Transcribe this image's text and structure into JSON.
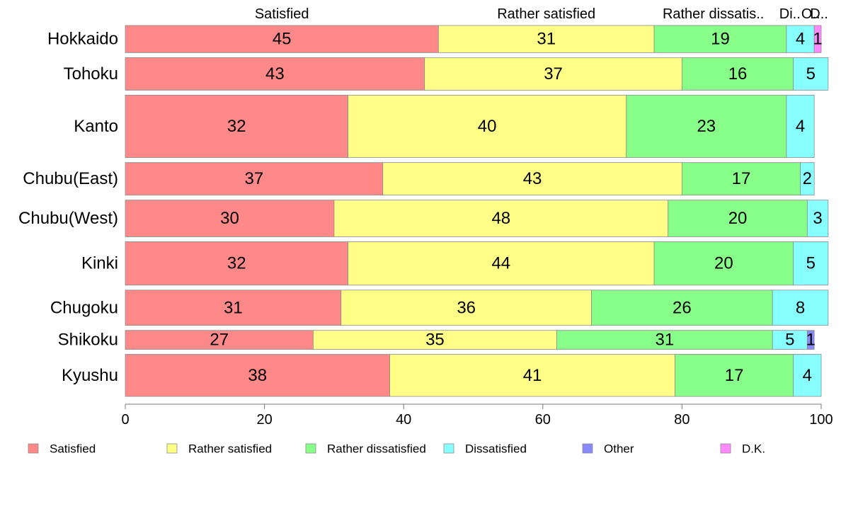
{
  "chart_data": {
    "type": "bar",
    "orientation": "horizontal",
    "stacked": true,
    "mosaic_row_heights": true,
    "categories": [
      "Hokkaido",
      "Tohoku",
      "Kanto",
      "Chubu(East)",
      "Chubu(West)",
      "Kinki",
      "Chugoku",
      "Shikoku",
      "Kyushu"
    ],
    "series": [
      {
        "name": "Satisfied",
        "color": "#ff8888",
        "values": [
          45,
          43,
          32,
          37,
          30,
          32,
          31,
          27,
          38
        ]
      },
      {
        "name": "Rather satisfied",
        "color": "#ffff88",
        "values": [
          31,
          37,
          40,
          43,
          48,
          44,
          36,
          35,
          41
        ]
      },
      {
        "name": "Rather dissatisfied",
        "color": "#88ff88",
        "values": [
          19,
          16,
          23,
          17,
          20,
          20,
          26,
          31,
          17
        ]
      },
      {
        "name": "Dissatisfied",
        "color": "#88ffff",
        "values": [
          4,
          5,
          4,
          2,
          3,
          5,
          8,
          5,
          4
        ]
      },
      {
        "name": "Other",
        "color": "#8888ff",
        "values": [
          0,
          0,
          0,
          0,
          0,
          0,
          0,
          1,
          0
        ]
      },
      {
        "name": "D.K.",
        "color": "#ff88ff",
        "values": [
          1,
          0,
          0,
          0,
          0,
          0,
          0,
          0,
          0
        ]
      }
    ],
    "row_weights": [
      1.0,
      1.2,
      2.3,
      1.2,
      1.35,
      1.6,
      1.3,
      0.7,
      1.55
    ],
    "top_labels": [
      "Satisfied",
      "Rather satisfied",
      "Rather dissatis..",
      "Di..",
      "O..",
      "D.."
    ],
    "xlim": [
      0,
      100
    ],
    "xticks": [
      0,
      20,
      40,
      60,
      80,
      100
    ],
    "xlabel": "",
    "ylabel": "",
    "title": "",
    "grid": false,
    "legend_position": "bottom",
    "legend": [
      "Satisfied",
      "Rather satisfied",
      "Rather dissatisfied",
      "Dissatisfied",
      "Other",
      "D.K."
    ]
  }
}
